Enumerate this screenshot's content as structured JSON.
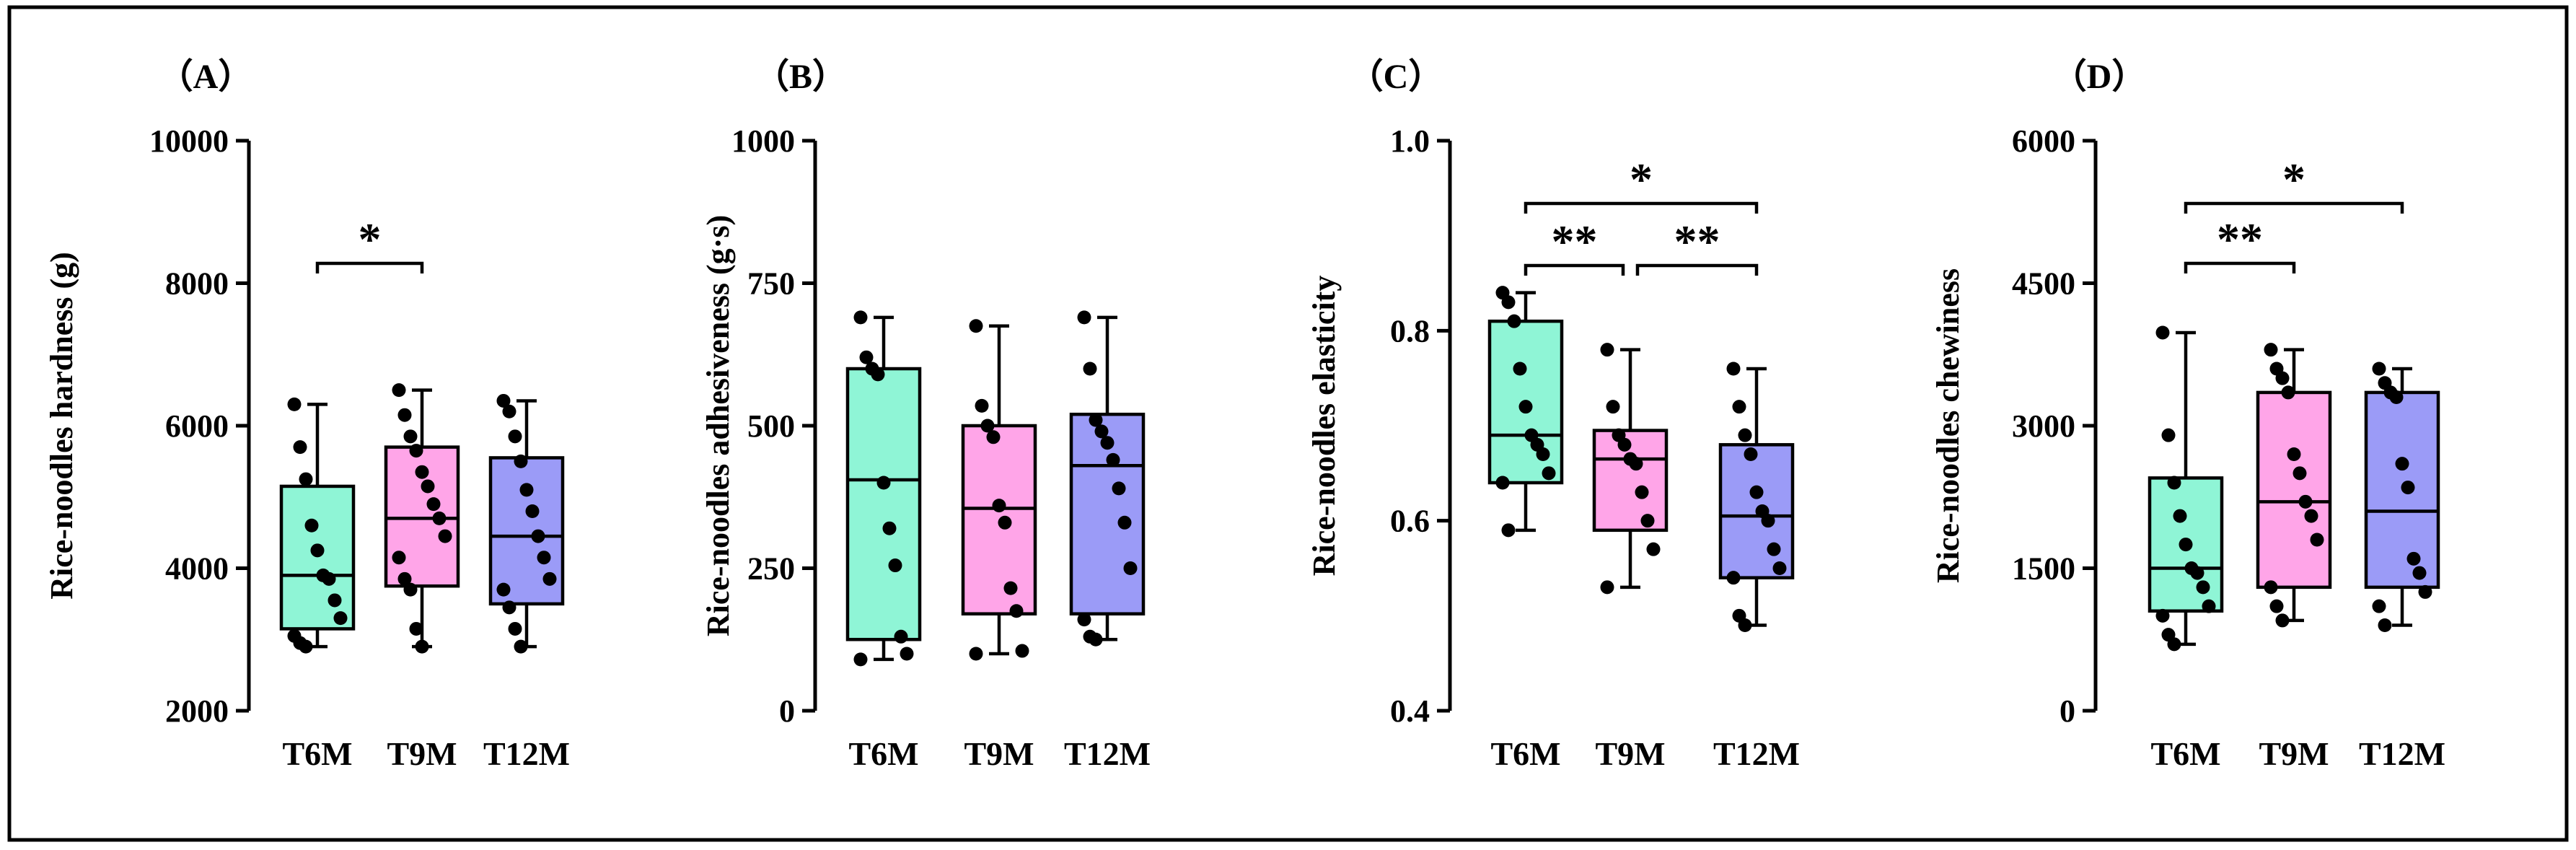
{
  "chart_data": [
    {
      "type": "box",
      "panel_label": "（A）",
      "ylabel": "Rice-noodles hardness (g)",
      "ylim": [
        2000,
        10000
      ],
      "yticks": [
        2000,
        4000,
        6000,
        8000,
        10000
      ],
      "categories": [
        "T6M",
        "T9M",
        "T12M"
      ],
      "series": [
        {
          "name": "T6M",
          "color": "#8ff5d6",
          "min": 2900,
          "q1": 3150,
          "median": 3900,
          "q3": 5150,
          "max": 6300,
          "points": [
            6300,
            5700,
            5250,
            4600,
            4250,
            3900,
            3850,
            3550,
            3300,
            3050,
            2950,
            2900
          ]
        },
        {
          "name": "T9M",
          "color": "#ffa5e8",
          "min": 2900,
          "q1": 3750,
          "median": 4700,
          "q3": 5700,
          "max": 6500,
          "points": [
            6500,
            6150,
            5850,
            5650,
            5350,
            5150,
            4900,
            4700,
            4450,
            4150,
            3850,
            3700,
            3150,
            2900
          ]
        },
        {
          "name": "T12M",
          "color": "#9b9bf7",
          "min": 2900,
          "q1": 3500,
          "median": 4450,
          "q3": 5550,
          "max": 6350,
          "points": [
            6350,
            6200,
            5850,
            5500,
            5100,
            4800,
            4450,
            4150,
            3850,
            3700,
            3450,
            3150,
            2900
          ]
        }
      ],
      "significance": [
        {
          "from": "T6M",
          "to": "T9M",
          "label": "*"
        }
      ]
    },
    {
      "type": "box",
      "panel_label": "（B）",
      "ylabel": "Rice-noodles adhesiveness (g·s)",
      "ylim": [
        0,
        1000
      ],
      "yticks": [
        0,
        250,
        500,
        750,
        1000
      ],
      "categories": [
        "T6M",
        "T9M",
        "T12M"
      ],
      "series": [
        {
          "name": "T6M",
          "color": "#8ff5d6",
          "min": 90,
          "q1": 125,
          "median": 405,
          "q3": 600,
          "max": 690,
          "points": [
            690,
            620,
            600,
            590,
            400,
            320,
            255,
            130,
            100,
            90
          ]
        },
        {
          "name": "T9M",
          "color": "#ffa5e8",
          "min": 100,
          "q1": 170,
          "median": 355,
          "q3": 500,
          "max": 675,
          "points": [
            675,
            535,
            500,
            480,
            360,
            330,
            215,
            175,
            105,
            100
          ]
        },
        {
          "name": "T12M",
          "color": "#9b9bf7",
          "min": 125,
          "q1": 170,
          "median": 430,
          "q3": 520,
          "max": 690,
          "points": [
            690,
            600,
            510,
            490,
            470,
            440,
            390,
            330,
            250,
            160,
            130,
            125
          ]
        }
      ],
      "significance": []
    },
    {
      "type": "box",
      "panel_label": "（C）",
      "ylabel": "Rice-noodles elasticity",
      "ylim": [
        0.4,
        1.0
      ],
      "yticks": [
        0.4,
        0.6,
        0.8,
        1.0
      ],
      "tick_labels": [
        "0.4",
        "0.6",
        "0.8",
        "1.0"
      ],
      "categories": [
        "T6M",
        "T9M",
        "T12M"
      ],
      "series": [
        {
          "name": "T6M",
          "color": "#8ff5d6",
          "min": 0.59,
          "q1": 0.64,
          "median": 0.69,
          "q3": 0.81,
          "max": 0.84,
          "points": [
            0.84,
            0.83,
            0.81,
            0.76,
            0.72,
            0.69,
            0.68,
            0.67,
            0.65,
            0.64,
            0.59
          ]
        },
        {
          "name": "T9M",
          "color": "#ffa5e8",
          "min": 0.53,
          "q1": 0.59,
          "median": 0.665,
          "q3": 0.695,
          "max": 0.78,
          "points": [
            0.78,
            0.72,
            0.69,
            0.68,
            0.665,
            0.66,
            0.63,
            0.6,
            0.57,
            0.53
          ]
        },
        {
          "name": "T12M",
          "color": "#9b9bf7",
          "min": 0.49,
          "q1": 0.54,
          "median": 0.605,
          "q3": 0.68,
          "max": 0.76,
          "points": [
            0.76,
            0.72,
            0.69,
            0.67,
            0.63,
            0.61,
            0.6,
            0.57,
            0.55,
            0.54,
            0.5,
            0.49
          ]
        }
      ],
      "significance": [
        {
          "from": "T6M",
          "to": "T9M",
          "label": "**"
        },
        {
          "from": "T9M",
          "to": "T12M",
          "label": "**"
        },
        {
          "from": "T6M",
          "to": "T12M",
          "label": "*"
        }
      ]
    },
    {
      "type": "box",
      "panel_label": "（D）",
      "ylabel": "Rice-noodles chewiness",
      "ylim": [
        0,
        6000
      ],
      "yticks": [
        0,
        1500,
        3000,
        4500,
        6000
      ],
      "categories": [
        "T6M",
        "T9M",
        "T12M"
      ],
      "series": [
        {
          "name": "T6M",
          "color": "#8ff5d6",
          "min": 700,
          "q1": 1050,
          "median": 1500,
          "q3": 2450,
          "max": 3980,
          "points": [
            3980,
            2900,
            2400,
            2050,
            1750,
            1500,
            1450,
            1300,
            1100,
            1000,
            800,
            700
          ]
        },
        {
          "name": "T9M",
          "color": "#ffa5e8",
          "min": 950,
          "q1": 1300,
          "median": 2200,
          "q3": 3350,
          "max": 3800,
          "points": [
            3800,
            3600,
            3500,
            3350,
            2700,
            2500,
            2200,
            2050,
            1800,
            1300,
            1100,
            950
          ]
        },
        {
          "name": "T12M",
          "color": "#9b9bf7",
          "min": 900,
          "q1": 1300,
          "median": 2100,
          "q3": 3350,
          "max": 3600,
          "points": [
            3600,
            3450,
            3350,
            3300,
            2600,
            2350,
            1600,
            1450,
            1250,
            1100,
            900
          ]
        }
      ],
      "significance": [
        {
          "from": "T6M",
          "to": "T9M",
          "label": "**"
        },
        {
          "from": "T6M",
          "to": "T12M",
          "label": "*"
        }
      ]
    }
  ]
}
